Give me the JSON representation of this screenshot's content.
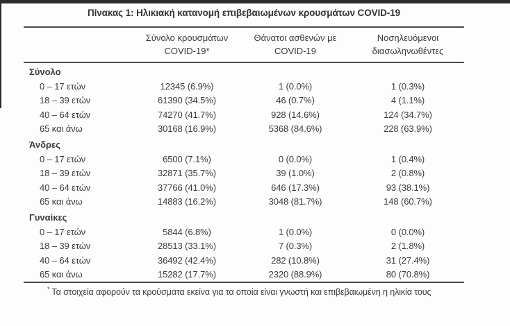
{
  "page": {
    "title": "Πίνακας 1: Ηλικιακή κατανομή επιβεβαιωμένων κρουσμάτων COVID-19",
    "footnote_marker": "*",
    "footnote_text": "Τα στοιχεία αφορούν τα κρούσματα εκείνα για τα οποία είναι γνωστή και επιβεβαιωμένη η ηλικία τους"
  },
  "table": {
    "headers": [
      {
        "line1": "Σύνολο κρουσμάτων",
        "line2": "COVID-19*"
      },
      {
        "line1": "Θάνατοι ασθενών με",
        "line2": "COVID-19"
      },
      {
        "line1": "Νοσηλευόμενοι",
        "line2": "διασωληνωθέντες"
      }
    ],
    "sections": [
      {
        "label": "Σύνολο",
        "rows": [
          {
            "age": "0 – 17 ετών",
            "cases": "12345 (6.9%)",
            "deaths": "1 (0.0%)",
            "intubated": "1 (0.3%)"
          },
          {
            "age": "18 – 39 ετών",
            "cases": "61390 (34.5%)",
            "deaths": "46 (0.7%)",
            "intubated": "4 (1.1%)"
          },
          {
            "age": "40 – 64 ετών",
            "cases": "74270 (41.7%)",
            "deaths": "928 (14.6%)",
            "intubated": "124 (34.7%)"
          },
          {
            "age": "65 και άνω",
            "cases": "30168 (16.9%)",
            "deaths": "5368 (84.6%)",
            "intubated": "228 (63.9%)"
          }
        ]
      },
      {
        "label": "Άνδρες",
        "rows": [
          {
            "age": "0 – 17 ετών",
            "cases": "6500 (7.1%)",
            "deaths": "0 (0.0%)",
            "intubated": "1 (0.4%)"
          },
          {
            "age": "18 – 39 ετών",
            "cases": "32871 (35.7%)",
            "deaths": "39 (1.0%)",
            "intubated": "2 (0.8%)"
          },
          {
            "age": "40 – 64 ετών",
            "cases": "37766 (41.0%)",
            "deaths": "646 (17.3%)",
            "intubated": "93 (38.1%)"
          },
          {
            "age": "65 και άνω",
            "cases": "14883 (16.2%)",
            "deaths": "3048 (81.7%)",
            "intubated": "148 (60.7%)"
          }
        ]
      },
      {
        "label": "Γυναίκες",
        "rows": [
          {
            "age": "0 – 17 ετών",
            "cases": "5844 (6.8%)",
            "deaths": "1 (0.0%)",
            "intubated": "0 (0.0%)"
          },
          {
            "age": "18 – 39 ετών",
            "cases": "28513 (33.1%)",
            "deaths": "7 (0.3%)",
            "intubated": "2 (1.8%)"
          },
          {
            "age": "40 – 64 ετών",
            "cases": "36492 (42.4%)",
            "deaths": "282 (10.8%)",
            "intubated": "31 (27.4%)"
          },
          {
            "age": "65 και άνω",
            "cases": "15282 (17.7%)",
            "deaths": "2320 (88.9%)",
            "intubated": "80 (70.8%)"
          }
        ]
      }
    ]
  },
  "colors": {
    "text": "#3b3b3b",
    "rule": "#4a4a4a",
    "edge_bar": "#2d2d2d",
    "background": "#fdfdfd"
  }
}
